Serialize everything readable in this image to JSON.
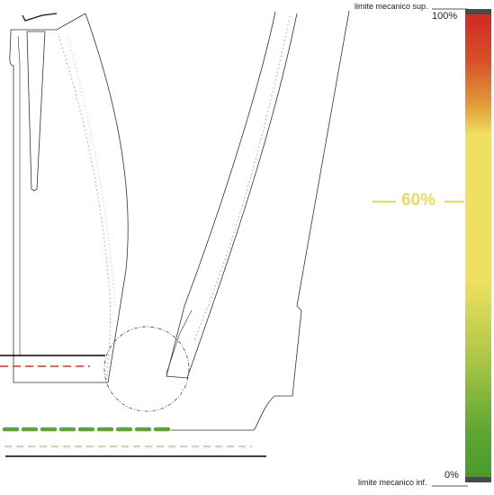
{
  "gauge": {
    "upper_limit_label": "limite mecanico sup.",
    "lower_limit_label": "limite mecanico inf.",
    "max_label": "100%",
    "min_label": "0%",
    "current_label": "60%",
    "current_value": 0.6,
    "colors": {
      "high": "#cf2a24",
      "mid": "#efe060",
      "low": "#4a9a2b",
      "value_text": "#efd95a"
    }
  },
  "reference_lines": [
    {
      "name": "black-line-upper",
      "color": "#000000",
      "style": "solid"
    },
    {
      "name": "red-line",
      "color": "#e0302a",
      "style": "dashed"
    },
    {
      "name": "green-line-thick",
      "color": "#5aa832",
      "style": "dashed"
    },
    {
      "name": "green-line-thin",
      "color": "#6cc24a",
      "style": "dashed"
    },
    {
      "name": "black-line-lower",
      "color": "#000000",
      "style": "solid"
    }
  ]
}
